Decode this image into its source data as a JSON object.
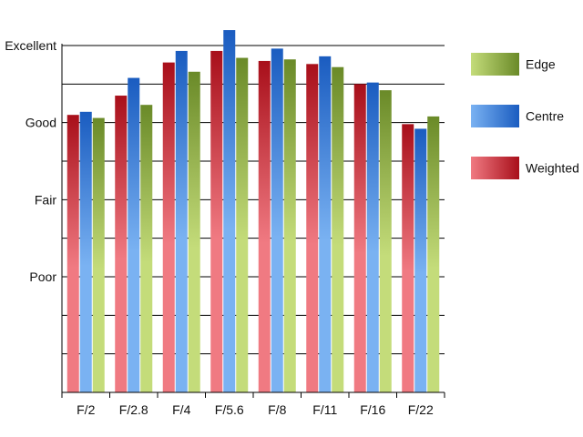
{
  "chart_data": {
    "type": "bar",
    "categories": [
      "F/2",
      "F/2.8",
      "F/4",
      "F/5.6",
      "F/8",
      "F/11",
      "F/16",
      "F/22"
    ],
    "series": [
      {
        "name": "Weighted",
        "values": [
          3.1,
          3.35,
          3.78,
          3.93,
          3.8,
          3.76,
          3.5,
          2.98
        ],
        "color_light": "#f07a82",
        "color_dark": "#a80f1a"
      },
      {
        "name": "Centre",
        "values": [
          3.14,
          3.58,
          3.93,
          4.2,
          3.96,
          3.86,
          3.52,
          2.92
        ],
        "color_light": "#7ab2f2",
        "color_dark": "#1a5cc0"
      },
      {
        "name": "Edge",
        "values": [
          3.06,
          3.23,
          3.66,
          3.84,
          3.82,
          3.72,
          3.42,
          3.08
        ],
        "color_light": "#c4dc7a",
        "color_dark": "#6a8a28"
      }
    ],
    "y_ticks": [
      {
        "value": 1,
        "label": "Poor"
      },
      {
        "value": 2,
        "label": "Fair"
      },
      {
        "value": 3,
        "label": "Good"
      },
      {
        "value": 4,
        "label": "Excellent"
      }
    ],
    "ylim": [
      -0.5,
      4.0
    ],
    "grid_step": 0.5,
    "grid": true,
    "legend_position": "right",
    "legend_order": [
      "Edge",
      "Centre",
      "Weighted"
    ],
    "title": "",
    "xlabel": "",
    "ylabel": ""
  }
}
